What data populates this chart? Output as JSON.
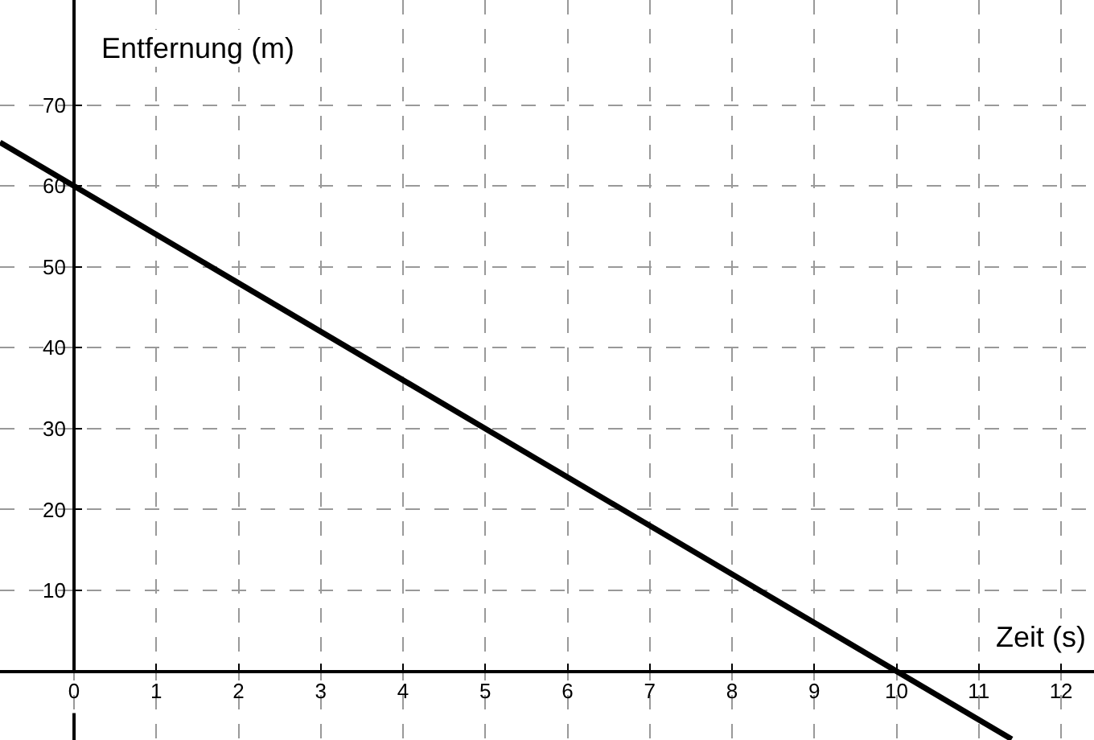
{
  "chart_data": {
    "type": "line",
    "xlabel": "Zeit (s)",
    "ylabel": "Entfernung (m)",
    "x": [
      -0.9,
      11.4
    ],
    "series": [
      {
        "color": "#000000",
        "values": [
          65.4,
          -8.4
        ]
      }
    ],
    "xlim": [
      -0.9,
      12.4
    ],
    "ylim": [
      -8.5,
      83
    ],
    "xticks": [
      0,
      1,
      2,
      3,
      4,
      5,
      6,
      7,
      8,
      9,
      10,
      11,
      12
    ],
    "yticks": [
      10,
      20,
      30,
      40,
      50,
      60,
      70
    ],
    "grid": true,
    "line_style": "solid"
  }
}
